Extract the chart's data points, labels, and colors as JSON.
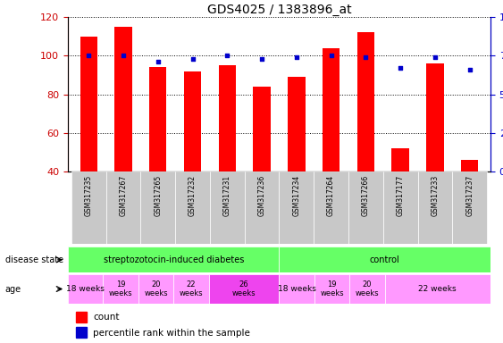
{
  "title": "GDS4025 / 1383896_at",
  "samples": [
    "GSM317235",
    "GSM317267",
    "GSM317265",
    "GSM317232",
    "GSM317231",
    "GSM317236",
    "GSM317234",
    "GSM317264",
    "GSM317266",
    "GSM317177",
    "GSM317233",
    "GSM317237"
  ],
  "counts": [
    110,
    115,
    94,
    92,
    95,
    84,
    89,
    104,
    112,
    52,
    96,
    46
  ],
  "percentiles": [
    75,
    75,
    71,
    73,
    75,
    73,
    74,
    75,
    74,
    67,
    74,
    66
  ],
  "ylim_left": [
    40,
    120
  ],
  "ylim_right": [
    0,
    100
  ],
  "yticks_left": [
    40,
    60,
    80,
    100,
    120
  ],
  "yticks_right": [
    0,
    25,
    50,
    75,
    100
  ],
  "bar_color": "#FF0000",
  "square_color": "#0000CC",
  "bar_width": 0.5,
  "tick_label_color_left": "#CC0000",
  "tick_label_color_right": "#0000CC",
  "green_color": "#66FF66",
  "pink_light": "#FF99FF",
  "pink_dark": "#EE44EE",
  "gray_bg": "#C8C8C8",
  "age_defs": [
    [
      0,
      1,
      "18 weeks",
      false
    ],
    [
      1,
      2,
      "19\nweeks",
      false
    ],
    [
      2,
      3,
      "20\nweeks",
      false
    ],
    [
      3,
      4,
      "22\nweeks",
      false
    ],
    [
      4,
      6,
      "26\nweeks",
      true
    ],
    [
      6,
      7,
      "18 weeks",
      false
    ],
    [
      7,
      8,
      "19\nweeks",
      false
    ],
    [
      8,
      9,
      "20\nweeks",
      false
    ],
    [
      9,
      12,
      "22 weeks",
      false
    ]
  ]
}
